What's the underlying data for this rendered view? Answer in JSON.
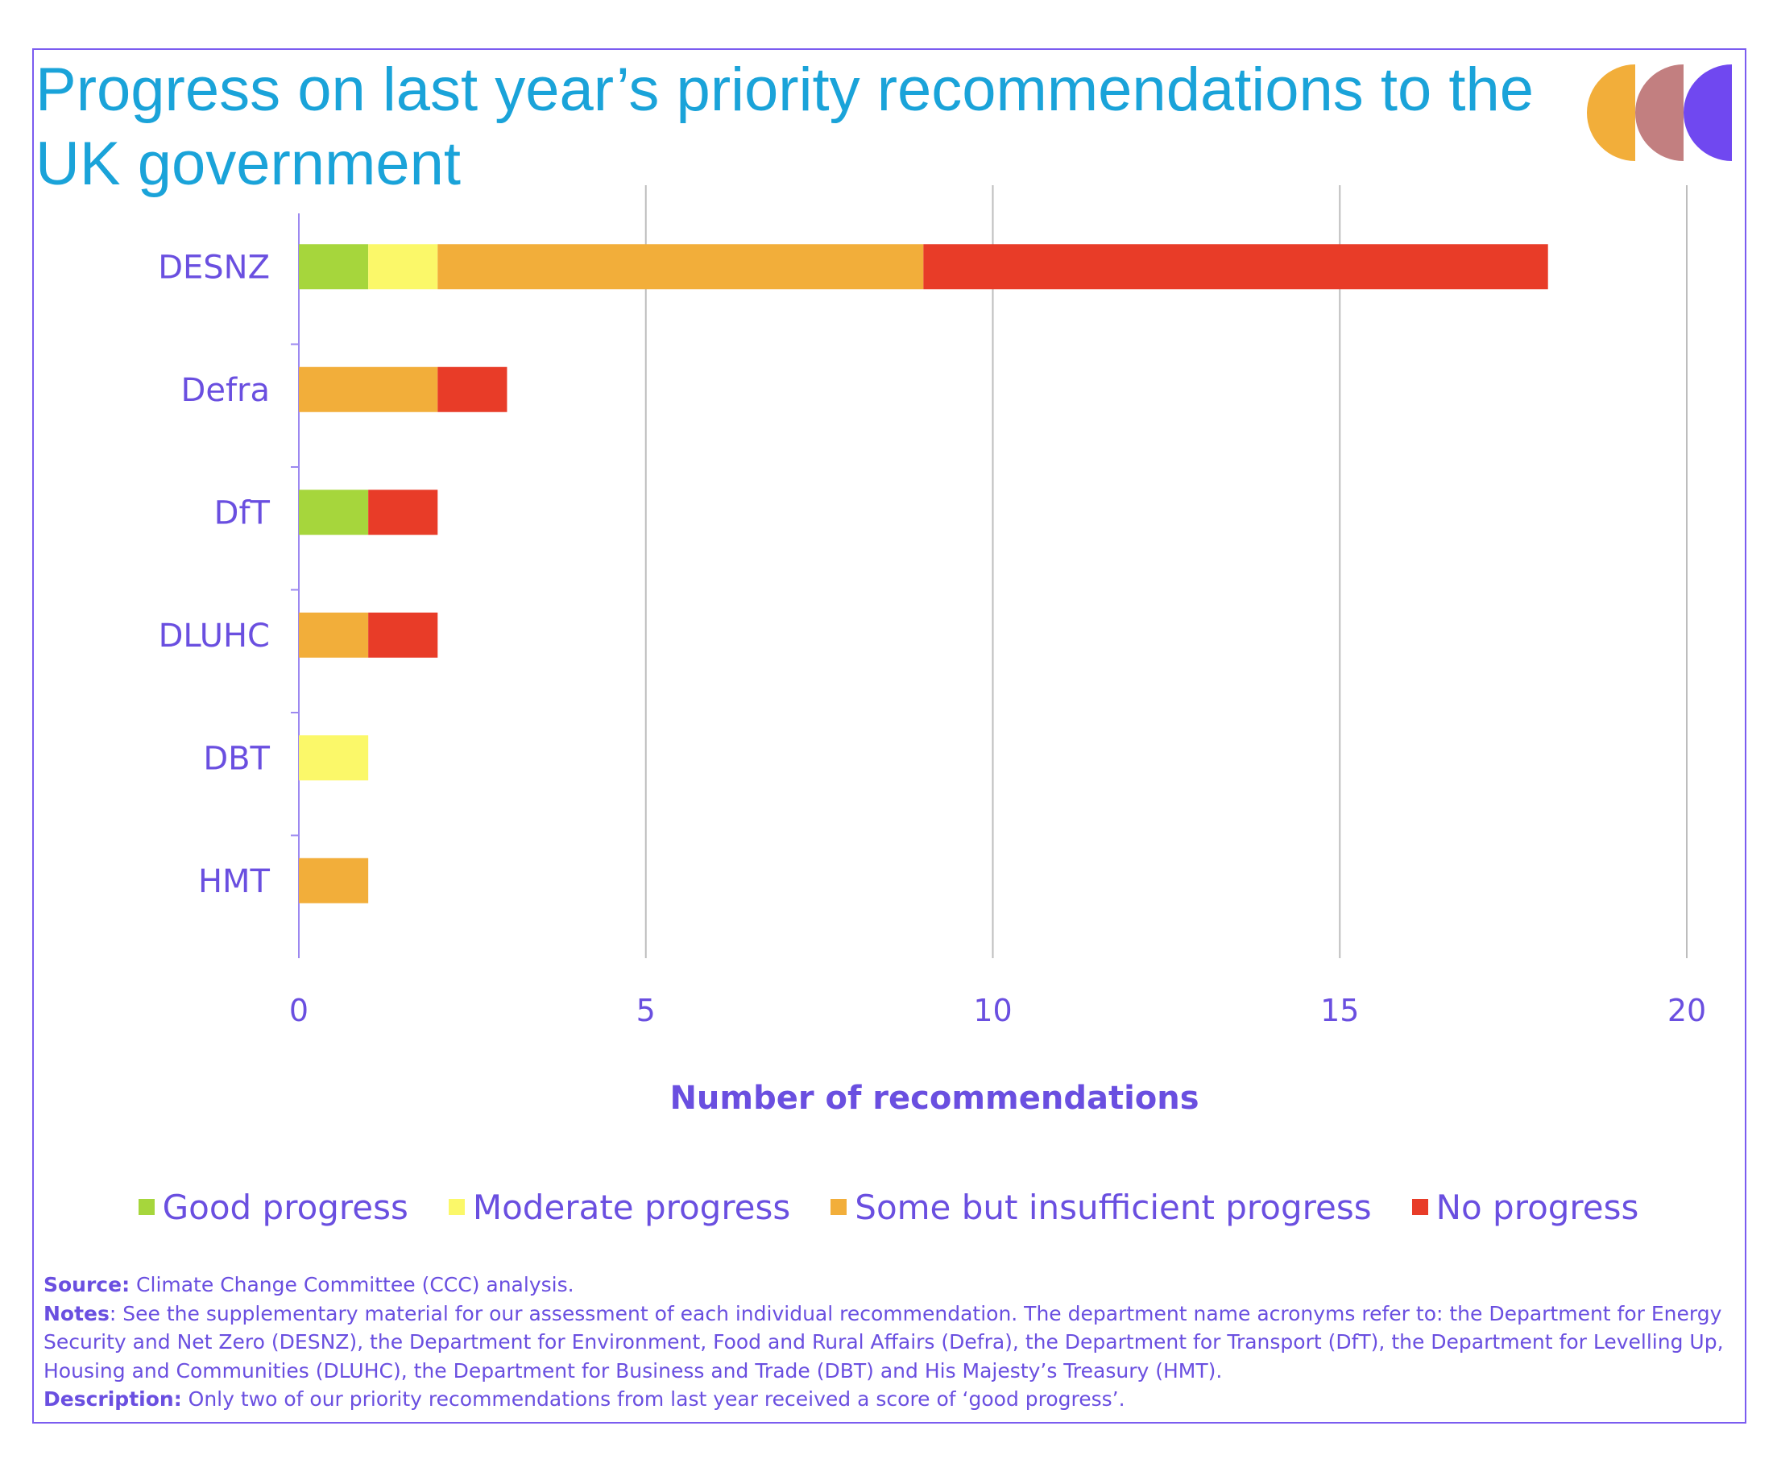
{
  "title": "Progress on last year’s priority recommendations to the UK government",
  "logo": {
    "colors": [
      "#f2ae3a",
      "#c27f80",
      "#7048f0"
    ]
  },
  "chart_data": {
    "type": "bar",
    "orientation": "horizontal",
    "stacked": true,
    "categories": [
      "DESNZ",
      "Defra",
      "DfT",
      "DLUHC",
      "DBT",
      "HMT"
    ],
    "series": [
      {
        "name": "Good progress",
        "color": "#a6d63c",
        "values": [
          1,
          0,
          1,
          0,
          0,
          0
        ]
      },
      {
        "name": "Moderate progress",
        "color": "#fbf869",
        "values": [
          1,
          0,
          0,
          0,
          1,
          0
        ]
      },
      {
        "name": "Some but insufficient progress",
        "color": "#f2ae3a",
        "values": [
          7,
          2,
          0,
          1,
          0,
          1
        ]
      },
      {
        "name": "No progress",
        "color": "#e83c28",
        "values": [
          9,
          1,
          1,
          1,
          0,
          0
        ]
      }
    ],
    "xlabel": "Number of recommendations",
    "ylabel": "",
    "xlim": [
      0,
      20
    ],
    "xticks": [
      "0",
      "5",
      "10",
      "15",
      "20"
    ],
    "grid": true,
    "legend_position": "bottom"
  },
  "notes": {
    "source_label": "Source:",
    "source_text": " Climate Change Committee (CCC) analysis.",
    "notes_label": "Notes",
    "notes_text": ": See the supplementary material for our assessment of each individual recommendation. The department name acronyms refer to: the Department for Energy Security and Net Zero (DESNZ), the Department for Environment, Food and Rural Affairs (Defra), the Department for Transport (DfT), the Department for Levelling Up, Housing and Communities (DLUHC), the Department for Business and Trade (DBT) and His Majesty’s Treasury (HMT).",
    "description_label": "Description:",
    "description_text": " Only two of our priority recommendations from last year received a score of ‘good progress’."
  }
}
